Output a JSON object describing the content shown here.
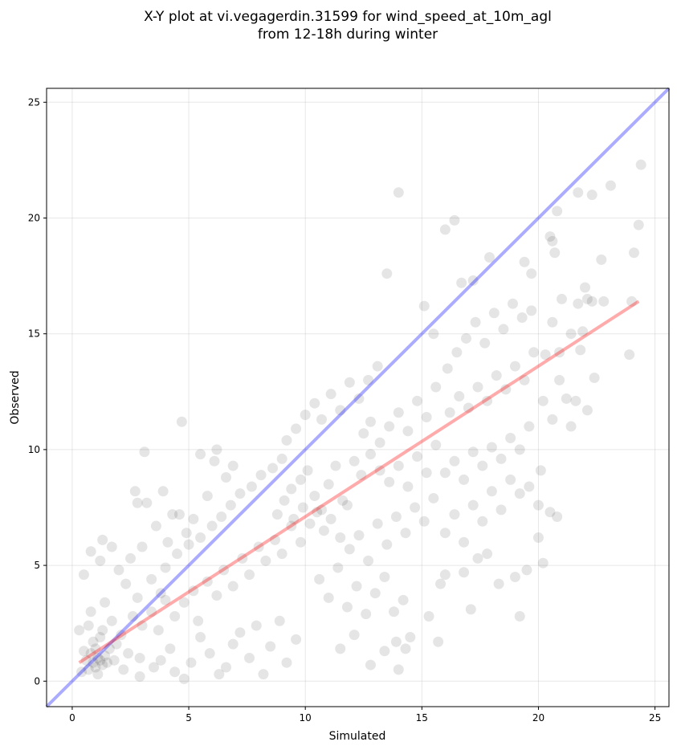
{
  "chart_data": {
    "type": "scatter",
    "title_lines": [
      "X-Y plot at vi.vegagerdin.31599 for wind_speed_at_10m_agl",
      "from 12-18h during winter"
    ],
    "xlabel": "Simulated",
    "ylabel": "Observed",
    "xlim": [
      -1.1,
      25.6
    ],
    "ylim": [
      -1.1,
      25.6
    ],
    "xticks": [
      0,
      5,
      10,
      15,
      20,
      25
    ],
    "yticks": [
      0,
      5,
      10,
      15,
      20,
      25
    ],
    "grid": true,
    "point_color": "#000000",
    "point_alpha": 0.1,
    "identity_line": {
      "color": "#0000ff",
      "from": [
        -1.1,
        -1.1
      ],
      "to": [
        25.6,
        25.6
      ]
    },
    "fit_line": {
      "color": "#ff0000",
      "from": [
        0.3,
        0.8
      ],
      "to": [
        24.3,
        16.4
      ]
    },
    "series": [
      {
        "points": [
          [
            0.9,
            0.8
          ],
          [
            1.1,
            1.0
          ],
          [
            1.0,
            0.6
          ],
          [
            1.2,
            0.9
          ],
          [
            0.8,
            1.2
          ],
          [
            1.3,
            0.7
          ],
          [
            1.0,
            1.4
          ],
          [
            0.7,
            0.5
          ],
          [
            1.4,
            1.1
          ],
          [
            1.1,
            0.3
          ],
          [
            0.6,
            0.9
          ],
          [
            1.5,
            0.8
          ],
          [
            0.9,
            1.7
          ],
          [
            1.2,
            1.9
          ],
          [
            0.5,
            1.3
          ],
          [
            1.6,
            1.4
          ],
          [
            1.8,
            0.9
          ],
          [
            0.4,
            0.4
          ],
          [
            1.3,
            2.2
          ],
          [
            1.9,
            1.6
          ],
          [
            2.1,
            2.0
          ],
          [
            0.7,
            2.4
          ],
          [
            1.7,
            2.6
          ],
          [
            2.4,
            1.2
          ],
          [
            2.2,
            0.5
          ],
          [
            0.3,
            2.2
          ],
          [
            0.8,
            3.0
          ],
          [
            1.4,
            3.4
          ],
          [
            2.6,
            2.8
          ],
          [
            2.9,
            1.0
          ],
          [
            0.5,
            4.6
          ],
          [
            0.8,
            5.6
          ],
          [
            1.2,
            5.2
          ],
          [
            1.3,
            6.1
          ],
          [
            1.7,
            5.8
          ],
          [
            2.0,
            4.8
          ],
          [
            2.3,
            4.2
          ],
          [
            2.8,
            3.6
          ],
          [
            3.0,
            5.8
          ],
          [
            2.5,
            5.3
          ],
          [
            3.1,
            9.9
          ],
          [
            2.7,
            8.2
          ],
          [
            2.8,
            7.7
          ],
          [
            3.2,
            7.7
          ],
          [
            3.6,
            6.7
          ],
          [
            3.9,
            8.2
          ],
          [
            4.3,
            7.2
          ],
          [
            4.1,
            6.0
          ],
          [
            3.4,
            4.4
          ],
          [
            3.8,
            3.8
          ],
          [
            4.7,
            11.2
          ],
          [
            4.6,
            7.2
          ],
          [
            4.9,
            6.4
          ],
          [
            5.2,
            7.0
          ],
          [
            5.5,
            9.8
          ],
          [
            5.8,
            8.0
          ],
          [
            6.1,
            9.5
          ],
          [
            6.2,
            10.0
          ],
          [
            6.6,
            8.8
          ],
          [
            6.9,
            9.3
          ],
          [
            2.9,
            0.2
          ],
          [
            3.5,
            0.6
          ],
          [
            3.8,
            0.9
          ],
          [
            4.2,
            1.4
          ],
          [
            4.4,
            0.4
          ],
          [
            4.8,
            0.1
          ],
          [
            5.1,
            0.8
          ],
          [
            5.5,
            1.9
          ],
          [
            5.9,
            1.2
          ],
          [
            6.3,
            0.3
          ],
          [
            6.6,
            0.6
          ],
          [
            6.9,
            1.6
          ],
          [
            7.2,
            2.1
          ],
          [
            7.6,
            1.0
          ],
          [
            7.9,
            2.4
          ],
          [
            8.2,
            0.3
          ],
          [
            8.5,
            1.5
          ],
          [
            8.9,
            2.6
          ],
          [
            9.2,
            0.8
          ],
          [
            9.6,
            1.8
          ],
          [
            3.0,
            2.4
          ],
          [
            3.4,
            3.0
          ],
          [
            3.7,
            2.2
          ],
          [
            4.0,
            3.5
          ],
          [
            4.4,
            2.8
          ],
          [
            4.8,
            3.4
          ],
          [
            5.2,
            3.9
          ],
          [
            5.4,
            2.6
          ],
          [
            5.8,
            4.3
          ],
          [
            6.2,
            3.7
          ],
          [
            6.5,
            4.8
          ],
          [
            6.9,
            4.1
          ],
          [
            7.3,
            5.3
          ],
          [
            7.6,
            4.6
          ],
          [
            8.0,
            5.8
          ],
          [
            8.3,
            5.2
          ],
          [
            8.7,
            6.1
          ],
          [
            9.0,
            5.5
          ],
          [
            9.4,
            6.7
          ],
          [
            9.8,
            6.0
          ],
          [
            4.0,
            4.9
          ],
          [
            4.5,
            5.5
          ],
          [
            5.0,
            5.9
          ],
          [
            5.5,
            6.2
          ],
          [
            6.0,
            6.7
          ],
          [
            6.4,
            7.1
          ],
          [
            6.8,
            7.6
          ],
          [
            7.2,
            8.1
          ],
          [
            7.7,
            8.4
          ],
          [
            8.1,
            8.9
          ],
          [
            8.6,
            9.2
          ],
          [
            9.0,
            9.6
          ],
          [
            9.4,
            8.3
          ],
          [
            9.8,
            8.7
          ],
          [
            10.1,
            9.1
          ],
          [
            10.4,
            8.0
          ],
          [
            10.7,
            7.4
          ],
          [
            11.0,
            8.5
          ],
          [
            11.3,
            9.3
          ],
          [
            11.6,
            7.8
          ],
          [
            8.8,
            7.2
          ],
          [
            9.1,
            7.8
          ],
          [
            9.5,
            7.0
          ],
          [
            9.9,
            7.5
          ],
          [
            10.2,
            6.8
          ],
          [
            10.5,
            7.3
          ],
          [
            10.8,
            6.5
          ],
          [
            11.1,
            7.0
          ],
          [
            11.5,
            6.2
          ],
          [
            11.8,
            7.6
          ],
          [
            9.2,
            10.4
          ],
          [
            9.6,
            10.9
          ],
          [
            10.0,
            11.5
          ],
          [
            10.4,
            12.0
          ],
          [
            10.7,
            11.3
          ],
          [
            11.1,
            12.4
          ],
          [
            11.5,
            11.7
          ],
          [
            11.9,
            12.9
          ],
          [
            12.3,
            12.2
          ],
          [
            12.7,
            13.0
          ],
          [
            13.1,
            13.6
          ],
          [
            12.5,
            10.7
          ],
          [
            12.8,
            11.2
          ],
          [
            13.2,
            10.3
          ],
          [
            13.6,
            11.0
          ],
          [
            14.0,
            11.6
          ],
          [
            14.4,
            10.8
          ],
          [
            14.8,
            12.1
          ],
          [
            15.2,
            11.4
          ],
          [
            15.6,
            12.7
          ],
          [
            12.1,
            9.5
          ],
          [
            12.4,
            8.9
          ],
          [
            12.8,
            9.8
          ],
          [
            13.2,
            9.1
          ],
          [
            13.6,
            8.6
          ],
          [
            14.0,
            9.3
          ],
          [
            14.4,
            8.4
          ],
          [
            14.8,
            9.7
          ],
          [
            15.2,
            9.0
          ],
          [
            15.6,
            10.2
          ],
          [
            11.9,
            5.7
          ],
          [
            12.3,
            6.3
          ],
          [
            12.7,
            5.2
          ],
          [
            13.1,
            6.8
          ],
          [
            13.5,
            5.9
          ],
          [
            13.9,
            7.1
          ],
          [
            14.3,
            6.4
          ],
          [
            14.7,
            7.5
          ],
          [
            15.1,
            6.9
          ],
          [
            15.5,
            7.9
          ],
          [
            10.6,
            4.4
          ],
          [
            11.0,
            3.6
          ],
          [
            11.4,
            4.9
          ],
          [
            11.8,
            3.2
          ],
          [
            12.2,
            4.1
          ],
          [
            12.6,
            2.9
          ],
          [
            13.0,
            3.8
          ],
          [
            13.4,
            4.5
          ],
          [
            13.8,
            3.0
          ],
          [
            14.2,
            3.5
          ],
          [
            12.8,
            0.7
          ],
          [
            13.4,
            1.3
          ],
          [
            13.9,
            1.7
          ],
          [
            14.0,
            0.5
          ],
          [
            14.3,
            1.4
          ],
          [
            14.5,
            1.9
          ],
          [
            15.3,
            2.8
          ],
          [
            15.7,
            1.7
          ],
          [
            11.5,
            1.4
          ],
          [
            12.1,
            2.0
          ],
          [
            16.0,
            9.0
          ],
          [
            16.4,
            9.5
          ],
          [
            16.8,
            8.7
          ],
          [
            17.2,
            9.9
          ],
          [
            17.6,
            9.3
          ],
          [
            18.0,
            10.1
          ],
          [
            18.4,
            9.6
          ],
          [
            18.8,
            10.5
          ],
          [
            19.2,
            10.0
          ],
          [
            19.6,
            11.0
          ],
          [
            16.2,
            11.6
          ],
          [
            16.6,
            12.3
          ],
          [
            17.0,
            11.8
          ],
          [
            17.4,
            12.7
          ],
          [
            17.8,
            12.1
          ],
          [
            18.2,
            13.2
          ],
          [
            18.6,
            12.6
          ],
          [
            19.0,
            13.6
          ],
          [
            19.4,
            13.0
          ],
          [
            19.8,
            14.2
          ],
          [
            16.1,
            13.5
          ],
          [
            16.5,
            14.2
          ],
          [
            16.9,
            14.8
          ],
          [
            17.3,
            15.5
          ],
          [
            17.7,
            14.6
          ],
          [
            18.1,
            15.9
          ],
          [
            18.5,
            15.2
          ],
          [
            18.9,
            16.3
          ],
          [
            19.3,
            15.7
          ],
          [
            19.7,
            16.0
          ],
          [
            16.0,
            6.4
          ],
          [
            16.4,
            7.2
          ],
          [
            16.8,
            6.0
          ],
          [
            17.2,
            7.6
          ],
          [
            17.6,
            6.9
          ],
          [
            18.0,
            8.2
          ],
          [
            18.4,
            7.4
          ],
          [
            18.8,
            8.7
          ],
          [
            19.2,
            8.1
          ],
          [
            19.6,
            8.4
          ],
          [
            15.8,
            4.2
          ],
          [
            16.0,
            4.6
          ],
          [
            16.8,
            4.7
          ],
          [
            17.4,
            5.3
          ],
          [
            17.8,
            5.5
          ],
          [
            18.3,
            4.2
          ],
          [
            19.0,
            4.5
          ],
          [
            19.5,
            4.8
          ],
          [
            17.1,
            3.1
          ],
          [
            19.2,
            2.8
          ],
          [
            20.0,
            6.2
          ],
          [
            20.2,
            5.1
          ],
          [
            20.5,
            7.3
          ],
          [
            20.8,
            7.1
          ],
          [
            20.0,
            7.6
          ],
          [
            20.1,
            9.1
          ],
          [
            20.6,
            11.3
          ],
          [
            20.9,
            13.0
          ],
          [
            21.2,
            12.2
          ],
          [
            21.6,
            12.1
          ],
          [
            20.2,
            12.1
          ],
          [
            20.3,
            14.1
          ],
          [
            20.6,
            15.5
          ],
          [
            20.9,
            14.2
          ],
          [
            21.4,
            11.0
          ],
          [
            21.7,
            16.3
          ],
          [
            21.9,
            15.1
          ],
          [
            22.1,
            16.5
          ],
          [
            22.3,
            16.4
          ],
          [
            22.4,
            13.1
          ],
          [
            20.5,
            19.2
          ],
          [
            20.6,
            19.0
          ],
          [
            20.8,
            20.3
          ],
          [
            20.7,
            18.5
          ],
          [
            21.0,
            16.5
          ],
          [
            21.7,
            21.1
          ],
          [
            22.0,
            17.0
          ],
          [
            22.3,
            21.0
          ],
          [
            22.7,
            18.2
          ],
          [
            23.1,
            21.4
          ],
          [
            14.0,
            21.1
          ],
          [
            13.5,
            17.6
          ],
          [
            16.0,
            19.5
          ],
          [
            16.4,
            19.9
          ],
          [
            17.9,
            18.3
          ],
          [
            19.4,
            18.1
          ],
          [
            21.8,
            14.3
          ],
          [
            22.1,
            11.7
          ],
          [
            23.9,
            14.1
          ],
          [
            24.1,
            18.5
          ],
          [
            24.3,
            19.7
          ],
          [
            24.4,
            22.3
          ],
          [
            24.0,
            16.4
          ],
          [
            16.7,
            17.2
          ],
          [
            17.2,
            17.3
          ],
          [
            15.1,
            16.2
          ],
          [
            15.5,
            15.0
          ],
          [
            19.7,
            17.6
          ],
          [
            21.4,
            15.0
          ],
          [
            22.8,
            16.4
          ]
        ]
      }
    ]
  }
}
